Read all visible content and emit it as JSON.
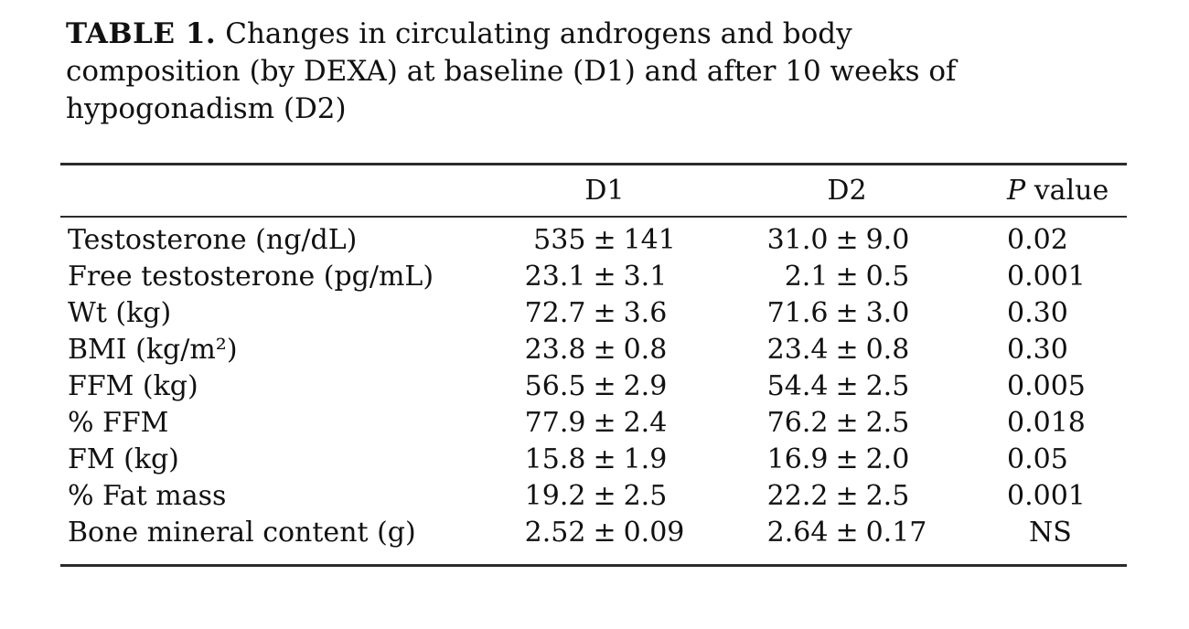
{
  "caption": {
    "label": "TABLE 1.",
    "line1": "Changes in circulating androgens and body",
    "line2": "composition (by DEXA) at baseline (D1) and after 10 weeks of",
    "line3": "hypogonadism (D2)"
  },
  "table": {
    "plus_minus": "±",
    "headers": {
      "metric": "",
      "d1": "D1",
      "d2": "D2",
      "p_italic": "P",
      "p_rest": " value"
    },
    "rows": [
      {
        "label": "Testosterone (ng/dL)",
        "d1_mean": "535",
        "d1_sd": "141",
        "d2_mean": "31.0",
        "d2_sd": "9.0",
        "p": "0.02"
      },
      {
        "label": "Free testosterone (pg/mL)",
        "d1_mean": "23.1",
        "d1_sd": "3.1",
        "d2_mean": "2.1",
        "d2_sd": "0.5",
        "p": "0.001"
      },
      {
        "label": "Wt (kg)",
        "d1_mean": "72.7",
        "d1_sd": "3.6",
        "d2_mean": "71.6",
        "d2_sd": "3.0",
        "p": "0.30"
      },
      {
        "label": "BMI (kg/m²)",
        "d1_mean": "23.8",
        "d1_sd": "0.8",
        "d2_mean": "23.4",
        "d2_sd": "0.8",
        "p": "0.30"
      },
      {
        "label": "FFM (kg)",
        "d1_mean": "56.5",
        "d1_sd": "2.9",
        "d2_mean": "54.4",
        "d2_sd": "2.5",
        "p": "0.005"
      },
      {
        "label": "% FFM",
        "d1_mean": "77.9",
        "d1_sd": "2.4",
        "d2_mean": "76.2",
        "d2_sd": "2.5",
        "p": "0.018"
      },
      {
        "label": "FM (kg)",
        "d1_mean": "15.8",
        "d1_sd": "1.9",
        "d2_mean": "16.9",
        "d2_sd": "2.0",
        "p": "0.05"
      },
      {
        "label": "% Fat mass",
        "d1_mean": "19.2",
        "d1_sd": "2.5",
        "d2_mean": "22.2",
        "d2_sd": "2.5",
        "p": "0.001"
      },
      {
        "label": "Bone mineral content (g)",
        "d1_mean": "2.52",
        "d1_sd": "0.09",
        "d2_mean": "2.64",
        "d2_sd": "0.17",
        "p": "NS"
      }
    ]
  },
  "colors": {
    "background": "#ffffff",
    "text": "#111111",
    "rule": "#2b2b2b"
  }
}
